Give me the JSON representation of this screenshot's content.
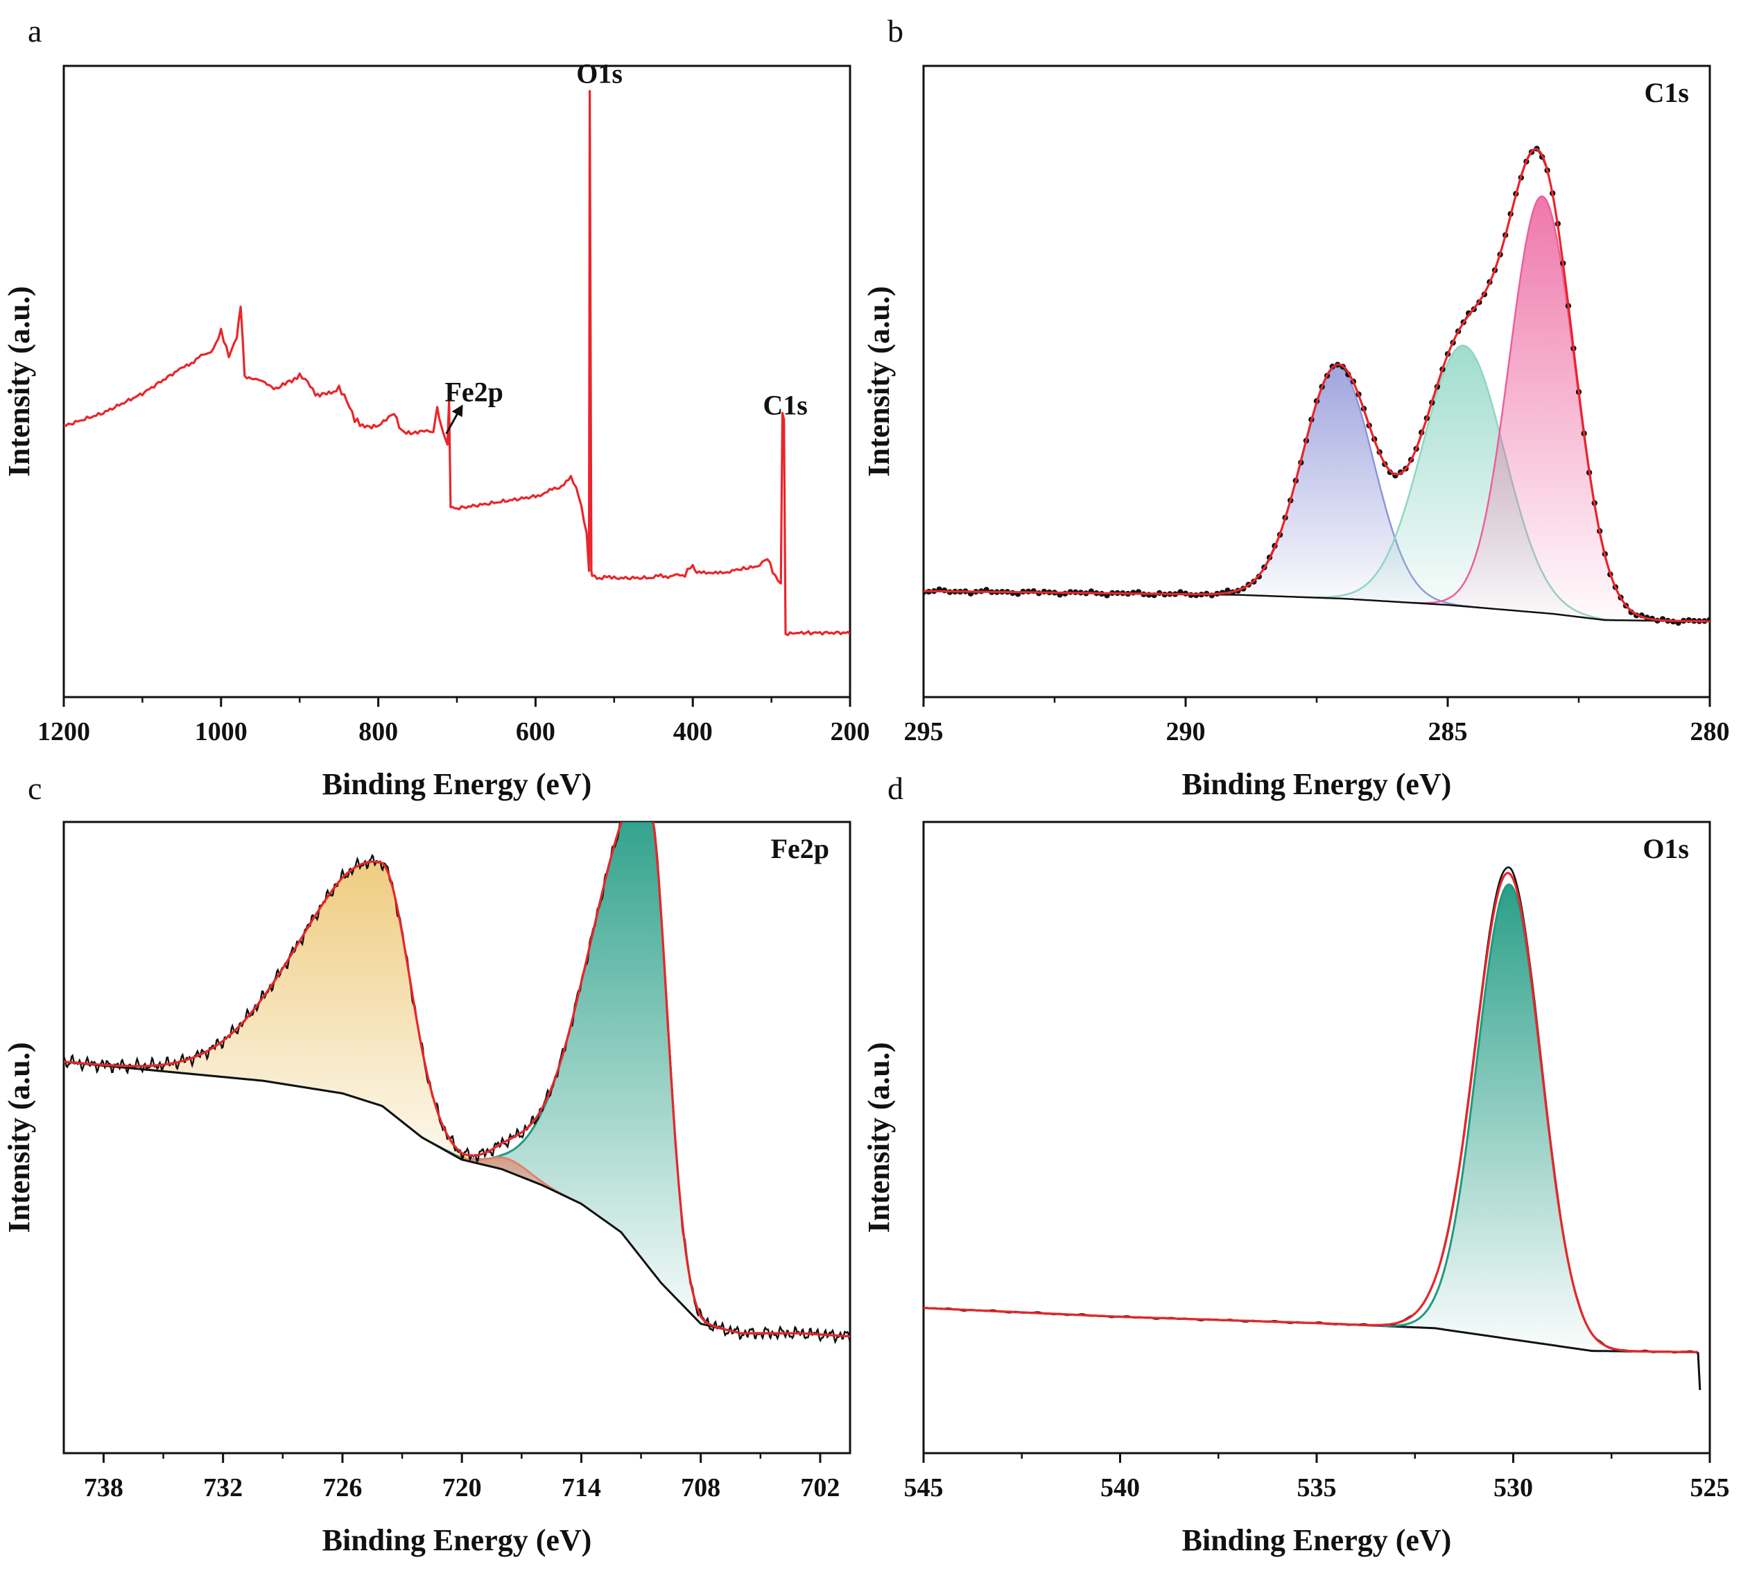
{
  "colors": {
    "survey": "#e8262b",
    "envelope": "#e8262b",
    "raw": "#111111",
    "baseline": "#111111",
    "c1s_peak1": "#8f96d8",
    "c1s_peak2": "#8fd6c4",
    "c1s_peak3": "#ec5f9c",
    "fe_main": "#1f9a82",
    "fe_sat": "#e8b64a",
    "fe_small": "#e4826a",
    "o_main": "#1f9a82"
  },
  "chart_data": [
    {
      "panel": "a",
      "type": "line",
      "xlabel": "Binding Energy (eV)",
      "ylabel": "Intensity (a.u.)",
      "xlim": [
        1200,
        200
      ],
      "ylim": [
        0,
        100
      ],
      "xticks": [
        1200,
        1000,
        800,
        600,
        400,
        200
      ],
      "annotations": [
        {
          "text": "O1s",
          "x": 531,
          "y": 96
        },
        {
          "text": "Fe2p",
          "x": 710,
          "y": 47
        },
        {
          "text": "C1s",
          "x": 285,
          "y": 45
        }
      ],
      "series": [
        {
          "points": [
            [
              1200,
              43
            ],
            [
              1150,
              45
            ],
            [
              1100,
              48
            ],
            [
              1050,
              52
            ],
            [
              1010,
              55
            ],
            [
              1000,
              58
            ],
            [
              990,
              54
            ],
            [
              980,
              57
            ],
            [
              975,
              62
            ],
            [
              970,
              51
            ],
            [
              950,
              50
            ],
            [
              930,
              49
            ],
            [
              910,
              50
            ],
            [
              900,
              51
            ],
            [
              890,
              50
            ],
            [
              880,
              48
            ],
            [
              860,
              48
            ],
            [
              850,
              49
            ],
            [
              840,
              47
            ],
            [
              830,
              44
            ],
            [
              820,
              43
            ],
            [
              800,
              43
            ],
            [
              790,
              44
            ],
            [
              780,
              45
            ],
            [
              770,
              42
            ],
            [
              750,
              42
            ],
            [
              730,
              42
            ],
            [
              725,
              46
            ],
            [
              720,
              43
            ],
            [
              715,
              41
            ],
            [
              712,
              40
            ],
            [
              710,
              47
            ],
            [
              708,
              30
            ],
            [
              700,
              30
            ],
            [
              650,
              31
            ],
            [
              600,
              32
            ],
            [
              570,
              33
            ],
            [
              555,
              35
            ],
            [
              545,
              32
            ],
            [
              535,
              26
            ],
            [
              532,
              20
            ],
            [
              531,
              96
            ],
            [
              529,
              20
            ],
            [
              528,
              19
            ],
            [
              500,
              19
            ],
            [
              450,
              19
            ],
            [
              410,
              19.5
            ],
            [
              400,
              21
            ],
            [
              395,
              19.5
            ],
            [
              350,
              20
            ],
            [
              315,
              21
            ],
            [
              305,
              22
            ],
            [
              295,
              19
            ],
            [
              288,
              18
            ],
            [
              286,
              45
            ],
            [
              284,
              44
            ],
            [
              282,
              10
            ],
            [
              250,
              10
            ],
            [
              200,
              10
            ]
          ]
        }
      ]
    },
    {
      "panel": "b",
      "type": "line",
      "title": "C1s",
      "xlabel": "Binding Energy (eV)",
      "ylabel": "Intensity (a.u.)",
      "xlim": [
        295,
        280
      ],
      "ylim": [
        0,
        100
      ],
      "xticks": [
        295,
        290,
        285,
        280
      ],
      "peaks": [
        {
          "center": 287.1,
          "height": 36.7,
          "sigma": 0.68
        },
        {
          "center": 284.7,
          "height": 41.3,
          "sigma": 0.78
        },
        {
          "center": 283.2,
          "height": 66.0,
          "sigma": 0.62
        }
      ],
      "baseline": [
        [
          295,
          16.8
        ],
        [
          289,
          16.2
        ],
        [
          287,
          15.6
        ],
        [
          285,
          14.6
        ],
        [
          283,
          13.2
        ],
        [
          282,
          12.2
        ],
        [
          280,
          12.0
        ]
      ]
    },
    {
      "panel": "c",
      "type": "line",
      "title": "Fe2p",
      "xlabel": "Binding Energy (eV)",
      "ylabel": "Intensity (a.u.)",
      "xlim": [
        740,
        700.5
      ],
      "ylim": [
        0,
        100
      ],
      "xticks": [
        738,
        732,
        726,
        720,
        714,
        708,
        702
      ],
      "peaks": [
        {
          "center": 710.6,
          "left_width": 2.8,
          "right_width": 0.9,
          "height": 73.5
        },
        {
          "center": 724.0,
          "left_width": 4.1,
          "right_width": 1.4,
          "height": 38.5
        },
        {
          "center": 717.6,
          "left_width": 1.0,
          "right_width": 1.0,
          "height": 2.0
        }
      ],
      "baseline": [
        [
          740,
          62
        ],
        [
          735,
          60.5
        ],
        [
          730,
          59
        ],
        [
          726,
          57
        ],
        [
          724,
          55
        ],
        [
          722,
          50
        ],
        [
          720,
          46.5
        ],
        [
          718,
          45
        ],
        [
          716,
          42.5
        ],
        [
          714,
          39.5
        ],
        [
          712,
          35
        ],
        [
          710,
          27
        ],
        [
          708,
          20.5
        ],
        [
          706,
          19
        ],
        [
          703,
          19
        ],
        [
          700.5,
          18.5
        ]
      ]
    },
    {
      "panel": "d",
      "type": "line",
      "title": "O1s",
      "xlabel": "Binding Energy (eV)",
      "ylabel": "Intensity (a.u.)",
      "xlim": [
        545,
        525
      ],
      "ylim": [
        0,
        100
      ],
      "xticks": [
        545,
        540,
        535,
        530,
        525
      ],
      "peaks": [
        {
          "center": 530.1,
          "height": 72.0,
          "sigma": 0.82
        },
        {
          "center": 531.2,
          "height": 4.5,
          "sigma": 0.8
        }
      ],
      "baseline": [
        [
          545,
          23
        ],
        [
          540,
          21.6
        ],
        [
          535,
          20.6
        ],
        [
          532,
          19.8
        ],
        [
          530,
          18
        ],
        [
          528,
          16.2
        ],
        [
          525.3,
          16
        ]
      ]
    }
  ]
}
